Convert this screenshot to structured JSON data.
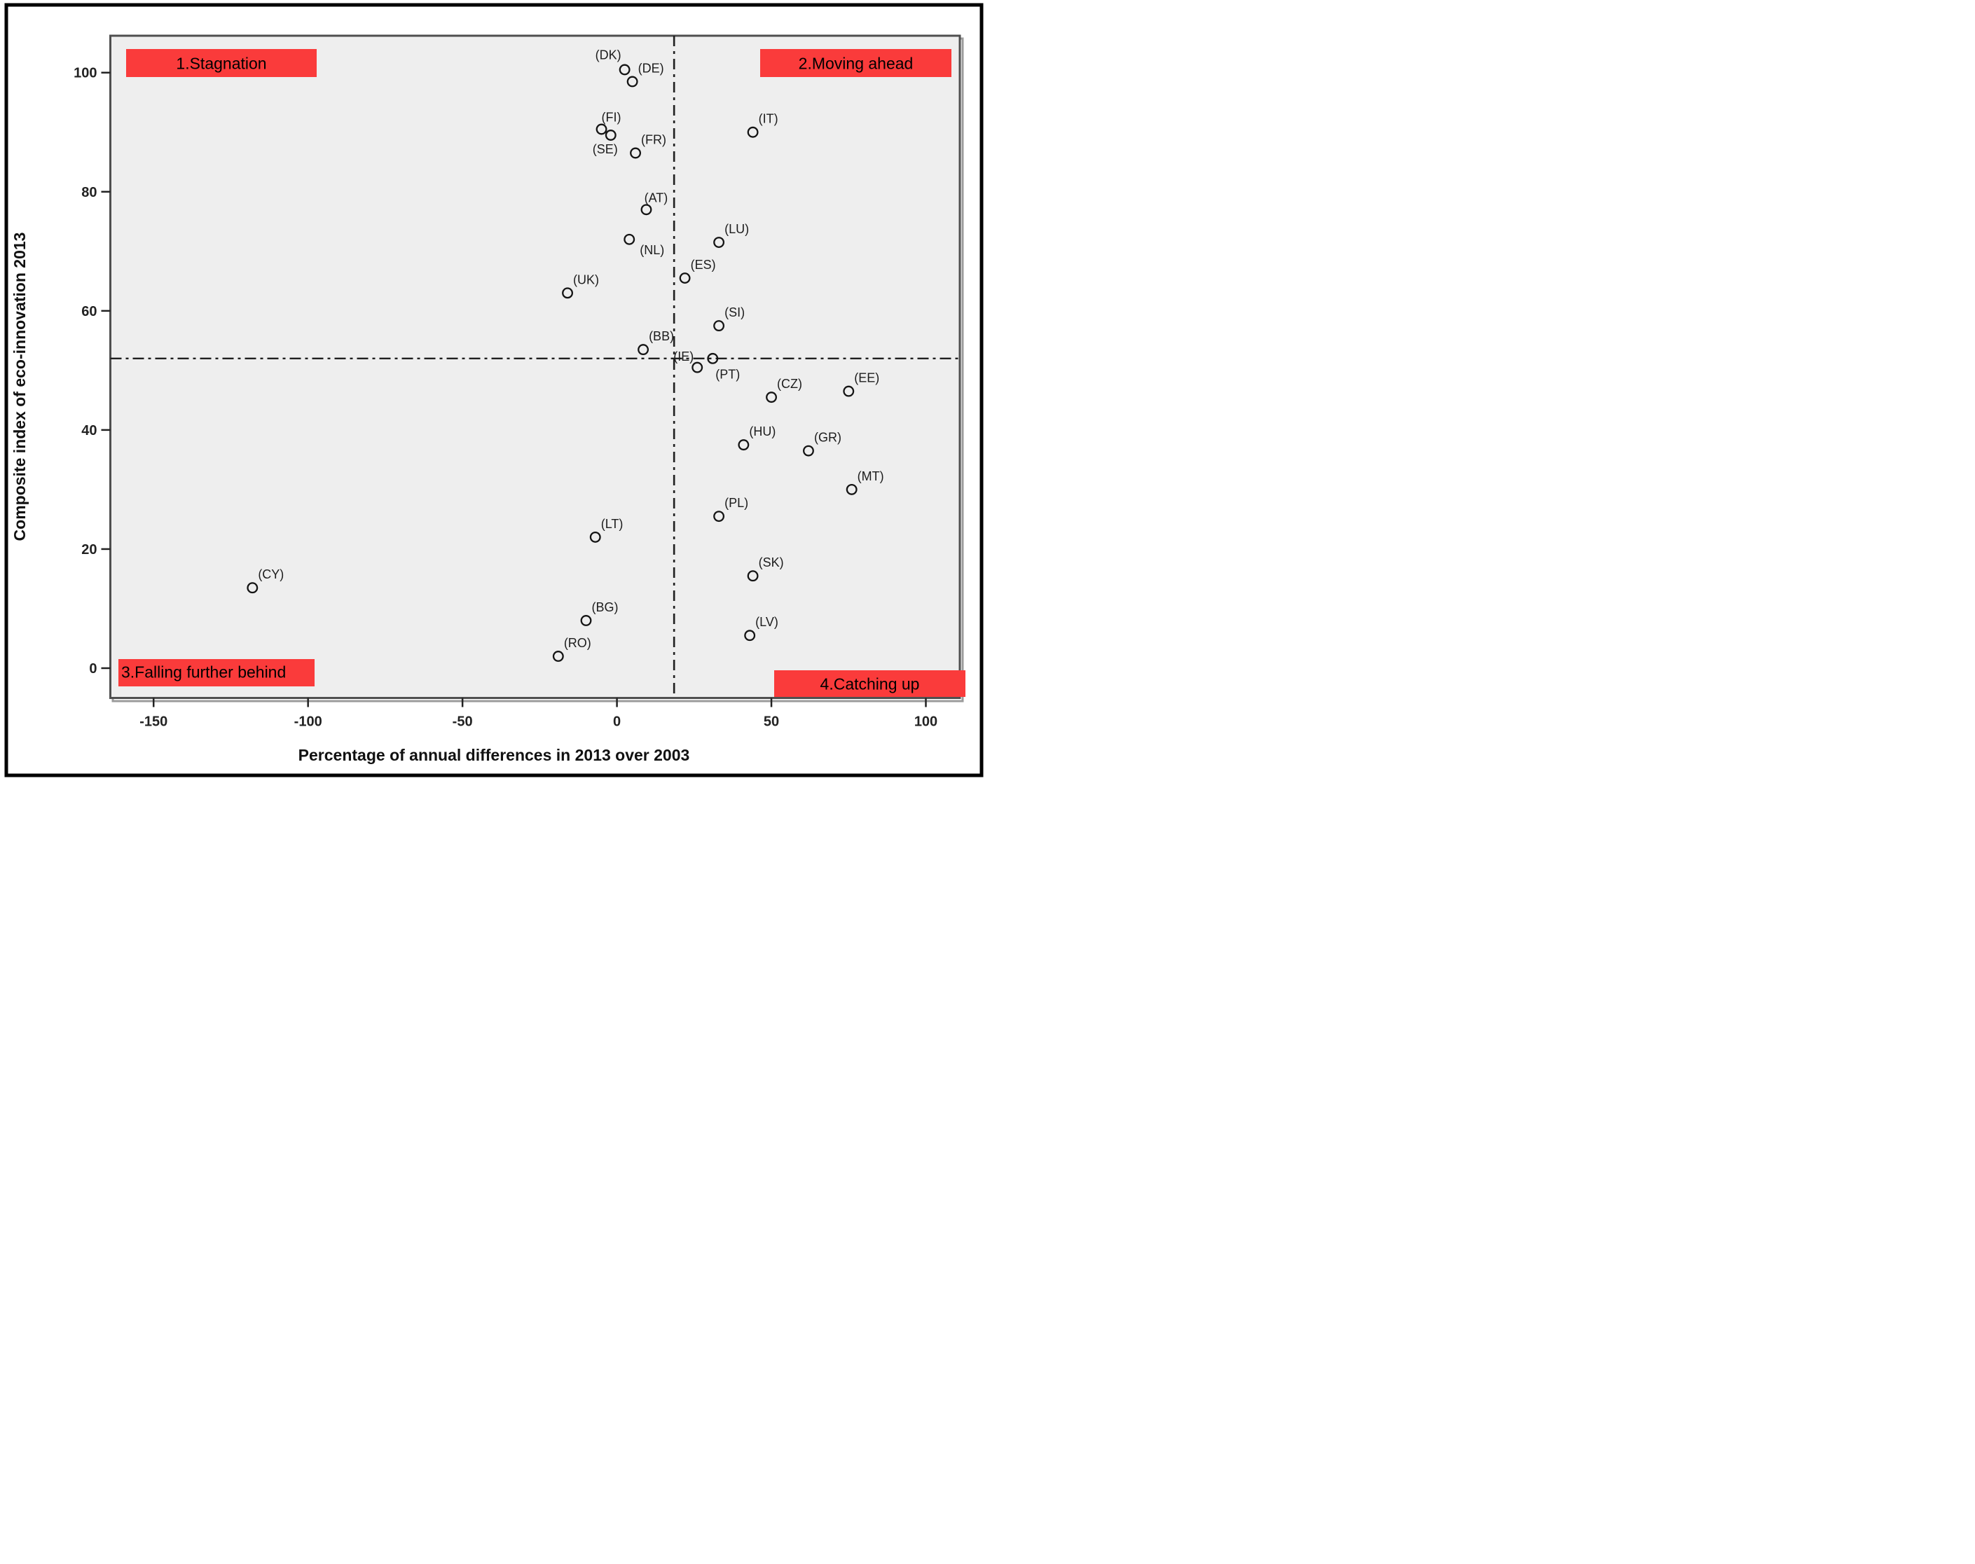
{
  "chart_data": {
    "type": "scatter",
    "title": "",
    "xlabel": "Percentage of annual differences in 2013 over 2003",
    "ylabel": "Composite index of eco-innovation 2013",
    "xlim": [
      -164,
      111
    ],
    "ylim": [
      -5,
      106.2
    ],
    "x_ticks": [
      -150,
      -100,
      -50,
      0,
      50,
      100
    ],
    "y_ticks": [
      0,
      20,
      40,
      60,
      80,
      100
    ],
    "grid": false,
    "plot_background": "#eeeeee",
    "marker": "open-circle",
    "reference_lines": {
      "horizontal_y": 52,
      "vertical_x": 18.5,
      "style": "dash-dot",
      "color": "#1f1f1f"
    },
    "quadrant_labels": [
      {
        "label": "1.Stagnation",
        "position": "top-left",
        "bg": "#fa3b3b"
      },
      {
        "label": "2.Moving ahead",
        "position": "top-right",
        "bg": "#fa3b3b"
      },
      {
        "label": "3.Falling further behind",
        "position": "bottom-left",
        "bg": "#fa3b3b"
      },
      {
        "label": "4.Catching up",
        "position": "bottom-right",
        "bg": "#fa3b3b"
      }
    ],
    "points": [
      {
        "label": "(DK)",
        "x": 2.5,
        "y": 100.5,
        "label_pos": "above-left"
      },
      {
        "label": "(DE)",
        "x": 5,
        "y": 98.5,
        "label_pos": "above-right"
      },
      {
        "label": "(FI)",
        "x": -5,
        "y": 90.5,
        "label_pos": "above"
      },
      {
        "label": "(SE)",
        "x": -2,
        "y": 89.5,
        "label_pos": "below-left"
      },
      {
        "label": "(FR)",
        "x": 6,
        "y": 86.5,
        "label_pos": "above-right"
      },
      {
        "label": "(IT)",
        "x": 44,
        "y": 90,
        "label_pos": "above-right"
      },
      {
        "label": "(AT)",
        "x": 9.5,
        "y": 77,
        "label_pos": "above"
      },
      {
        "label": "(NL)",
        "x": 4,
        "y": 72,
        "label_pos": "below-right"
      },
      {
        "label": "(LU)",
        "x": 33,
        "y": 71.5,
        "label_pos": "above-right"
      },
      {
        "label": "(ES)",
        "x": 22,
        "y": 65.5,
        "label_pos": "above-right"
      },
      {
        "label": "(UK)",
        "x": -16,
        "y": 63,
        "label_pos": "above-right"
      },
      {
        "label": "(SI)",
        "x": 33,
        "y": 57.5,
        "label_pos": "above-right"
      },
      {
        "label": "(BB)",
        "x": 8.5,
        "y": 53.5,
        "label_pos": "above-right"
      },
      {
        "label": "(IE)",
        "x": 31,
        "y": 52,
        "label_pos": "left"
      },
      {
        "label": "(PT)",
        "x": 26,
        "y": 50.5,
        "label_pos": "right-below"
      },
      {
        "label": "(CZ)",
        "x": 50,
        "y": 45.5,
        "label_pos": "above-right"
      },
      {
        "label": "(EE)",
        "x": 75,
        "y": 46.5,
        "label_pos": "above-right"
      },
      {
        "label": "(HU)",
        "x": 41,
        "y": 37.5,
        "label_pos": "above-right"
      },
      {
        "label": "(GR)",
        "x": 62,
        "y": 36.5,
        "label_pos": "above-right"
      },
      {
        "label": "(MT)",
        "x": 76,
        "y": 30,
        "label_pos": "above-right"
      },
      {
        "label": "(PL)",
        "x": 33,
        "y": 25.5,
        "label_pos": "above-right"
      },
      {
        "label": "(LT)",
        "x": -7,
        "y": 22,
        "label_pos": "above-right"
      },
      {
        "label": "(SK)",
        "x": 44,
        "y": 15.5,
        "label_pos": "above-right"
      },
      {
        "label": "(LV)",
        "x": 43,
        "y": 5.5,
        "label_pos": "above-right"
      },
      {
        "label": "(CY)",
        "x": -118,
        "y": 13.5,
        "label_pos": "above-right"
      },
      {
        "label": "(BG)",
        "x": -10,
        "y": 8,
        "label_pos": "above-right"
      },
      {
        "label": "(RO)",
        "x": -19,
        "y": 2,
        "label_pos": "above-right"
      }
    ]
  }
}
